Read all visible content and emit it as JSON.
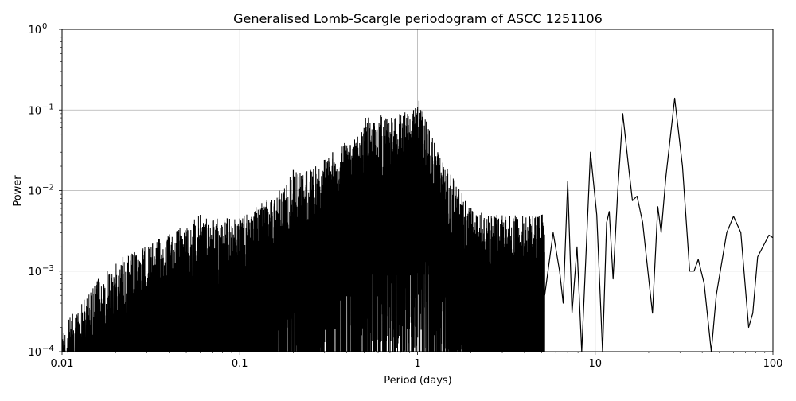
{
  "chart_data": {
    "type": "line",
    "title": "Generalised Lomb-Scargle periodogram of ASCC 1251106",
    "xlabel": "Period (days)",
    "ylabel": "Power",
    "xscale": "log",
    "yscale": "log",
    "xlim": [
      0.01,
      100
    ],
    "ylim": [
      0.0001,
      1
    ],
    "grid": true,
    "line_color": "#000000",
    "grid_color": "#b0b0b0",
    "x_ticks": [
      {
        "value": 0.01,
        "label": "0.01"
      },
      {
        "value": 0.1,
        "label": "0.1"
      },
      {
        "value": 1,
        "label": "1"
      },
      {
        "value": 10,
        "label": "10"
      },
      {
        "value": 100,
        "label": "100"
      }
    ],
    "y_ticks": [
      {
        "value": 0.0001,
        "base": "10",
        "exp": "−4"
      },
      {
        "value": 0.001,
        "base": "10",
        "exp": "−3"
      },
      {
        "value": 0.01,
        "base": "10",
        "exp": "−2"
      },
      {
        "value": 0.1,
        "base": "10",
        "exp": "−1"
      },
      {
        "value": 1,
        "base": "10",
        "exp": "0"
      }
    ],
    "peaks": [
      {
        "period": 0.01,
        "power": 0.0002
      },
      {
        "period": 0.016,
        "power": 0.0008
      },
      {
        "period": 0.022,
        "power": 0.0015
      },
      {
        "period": 0.035,
        "power": 0.0025
      },
      {
        "period": 0.06,
        "power": 0.005
      },
      {
        "period": 0.1,
        "power": 0.0045
      },
      {
        "period": 0.167,
        "power": 0.01
      },
      {
        "period": 0.2,
        "power": 0.018
      },
      {
        "period": 0.25,
        "power": 0.018
      },
      {
        "period": 0.333,
        "power": 0.03
      },
      {
        "period": 0.5,
        "power": 0.06
      },
      {
        "period": 0.51,
        "power": 0.08
      },
      {
        "period": 0.95,
        "power": 0.1
      },
      {
        "period": 1.02,
        "power": 0.13
      },
      {
        "period": 1.3,
        "power": 0.03
      },
      {
        "period": 2.0,
        "power": 0.006
      },
      {
        "period": 2.8,
        "power": 0.005
      },
      {
        "period": 5.0,
        "power": 0.005
      },
      {
        "period": 7.0,
        "power": 0.014
      },
      {
        "period": 9.4,
        "power": 0.03
      },
      {
        "period": 12.0,
        "power": 0.0055
      },
      {
        "period": 14.3,
        "power": 0.09
      },
      {
        "period": 17.0,
        "power": 0.0085
      },
      {
        "period": 22.5,
        "power": 0.0063
      },
      {
        "period": 28.0,
        "power": 0.14
      },
      {
        "period": 38.0,
        "power": 0.0014
      },
      {
        "period": 60.0,
        "power": 0.0048
      },
      {
        "period": 95.0,
        "power": 0.0028
      }
    ],
    "smooth_curve": [
      [
        5.2,
        0.0005
      ],
      [
        5.8,
        0.003
      ],
      [
        6.3,
        0.001
      ],
      [
        6.6,
        0.0004
      ],
      [
        7.0,
        0.013
      ],
      [
        7.4,
        0.0003
      ],
      [
        7.9,
        0.002
      ],
      [
        8.4,
        0.0001
      ],
      [
        9.4,
        0.03
      ],
      [
        10.2,
        0.005
      ],
      [
        11.0,
        0.0001
      ],
      [
        11.6,
        0.004
      ],
      [
        12.0,
        0.0055
      ],
      [
        12.6,
        0.0008
      ],
      [
        13.4,
        0.01
      ],
      [
        14.3,
        0.09
      ],
      [
        15.4,
        0.02
      ],
      [
        16.2,
        0.0075
      ],
      [
        17.2,
        0.0085
      ],
      [
        18.5,
        0.004
      ],
      [
        20.0,
        0.0008
      ],
      [
        21.0,
        0.0003
      ],
      [
        22.5,
        0.0063
      ],
      [
        23.5,
        0.003
      ],
      [
        25.0,
        0.015
      ],
      [
        28.0,
        0.14
      ],
      [
        31.0,
        0.02
      ],
      [
        34.0,
        0.001
      ],
      [
        36.0,
        0.001
      ],
      [
        38.0,
        0.0014
      ],
      [
        41.0,
        0.0007
      ],
      [
        45.0,
        9e-05
      ],
      [
        48.0,
        0.0005
      ],
      [
        55.0,
        0.003
      ],
      [
        60.0,
        0.0048
      ],
      [
        66.0,
        0.003
      ],
      [
        73.0,
        0.0002
      ],
      [
        77.0,
        0.0003
      ],
      [
        82.0,
        0.0015
      ],
      [
        95.0,
        0.0028
      ],
      [
        100.0,
        0.0026
      ]
    ]
  }
}
